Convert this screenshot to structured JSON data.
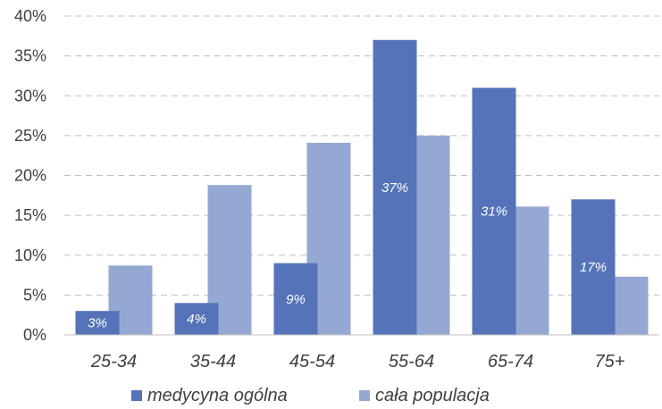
{
  "chart_data": {
    "type": "bar",
    "categories": [
      "25-34",
      "35-44",
      "45-54",
      "55-64",
      "65-74",
      "75+"
    ],
    "series": [
      {
        "name": "medycyna ogólna",
        "values": [
          3,
          4,
          9,
          37,
          31,
          17
        ],
        "color": "#5573b8",
        "data_labels": [
          "3%",
          "4%",
          "9%",
          "37%",
          "31%",
          "17%"
        ]
      },
      {
        "name": "cała populacja",
        "values": [
          8.7,
          18.8,
          24.1,
          25.0,
          16.1,
          7.3
        ],
        "color": "#95a8d3"
      }
    ],
    "ylim": [
      0,
      40
    ],
    "yticks": [
      0,
      5,
      10,
      15,
      20,
      25,
      30,
      35,
      40
    ],
    "ytick_labels": [
      "0%",
      "5%",
      "10%",
      "15%",
      "20%",
      "25%",
      "30%",
      "35%",
      "40%"
    ],
    "grid": true,
    "legend_position": "bottom",
    "title": "",
    "xlabel": "",
    "ylabel": ""
  }
}
